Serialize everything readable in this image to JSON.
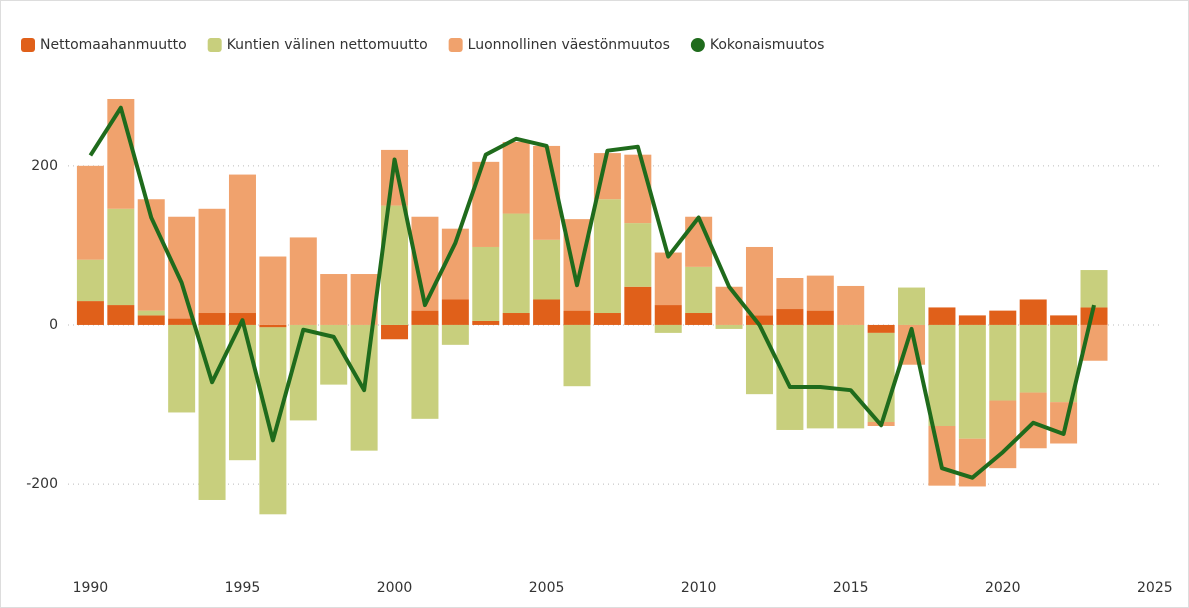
{
  "chart_data": {
    "type": "bar",
    "stacked": true,
    "x": [
      1990,
      1991,
      1992,
      1993,
      1994,
      1995,
      1996,
      1997,
      1998,
      1999,
      2000,
      2001,
      2002,
      2003,
      2004,
      2005,
      2006,
      2007,
      2008,
      2009,
      2010,
      2011,
      2012,
      2013,
      2014,
      2015,
      2016,
      2017,
      2018,
      2019,
      2020,
      2021,
      2022,
      2023
    ],
    "series": [
      {
        "name": "Nettomaahanmuutto",
        "color": "#e0601a",
        "values": [
          30,
          25,
          12,
          8,
          15,
          15,
          -3,
          0,
          0,
          0,
          -18,
          18,
          32,
          5,
          15,
          32,
          18,
          15,
          48,
          25,
          15,
          0,
          12,
          20,
          18,
          0,
          -10,
          0,
          22,
          12,
          18,
          32,
          12,
          22
        ]
      },
      {
        "name": "Kuntien välinen nettomuutto",
        "color": "#c8cf7d",
        "values": [
          52,
          121,
          6,
          -110,
          -220,
          -170,
          -235,
          -120,
          -75,
          -158,
          150,
          -118,
          -25,
          93,
          125,
          75,
          -77,
          143,
          80,
          -10,
          58,
          -5,
          -87,
          -132,
          -130,
          -130,
          -112,
          47,
          -127,
          -143,
          -95,
          -85,
          -97,
          47
        ]
      },
      {
        "name": "Luonnollinen väestönmuutos",
        "color": "#f0a26d",
        "values": [
          118,
          138,
          140,
          128,
          131,
          174,
          86,
          110,
          64,
          64,
          70,
          118,
          89,
          107,
          90,
          118,
          115,
          58,
          86,
          66,
          63,
          48,
          86,
          39,
          44,
          49,
          -5,
          -50,
          -75,
          -60,
          -85,
          -70,
          -52,
          -45
        ]
      },
      {
        "name": "Kokonaismuutos",
        "color": "#1f6b1c",
        "type": "line",
        "values": [
          213,
          273,
          135,
          53,
          -72,
          6,
          -145,
          -6,
          -15,
          -82,
          208,
          25,
          103,
          214,
          234,
          225,
          50,
          219,
          224,
          86,
          135,
          48,
          0,
          -78,
          -78,
          -82,
          -126,
          -5,
          -180,
          -192,
          -160,
          -123,
          -137,
          25
        ]
      }
    ],
    "xlim": [
      1989,
      2025.4
    ],
    "xticks": [
      1990,
      1995,
      2000,
      2005,
      2010,
      2015,
      2020,
      2025
    ],
    "ylim": [
      -308,
      333
    ],
    "yticks": [
      -200,
      0,
      200
    ],
    "grid": true,
    "legend": "top-left"
  }
}
